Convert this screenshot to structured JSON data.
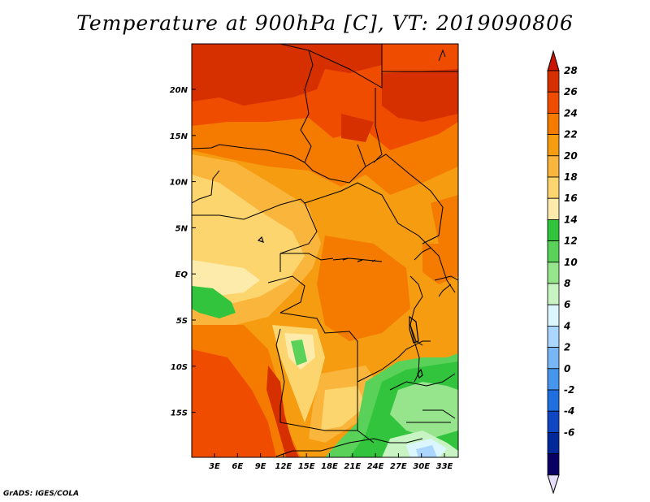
{
  "title": "Temperature at 900hPa [C], VT: 2019090806",
  "credit": "GrADS: IGES/COLA",
  "lat_labels": [
    "20N",
    "15N",
    "10N",
    "5N",
    "EQ",
    "5S",
    "10S",
    "15S"
  ],
  "lon_labels": [
    "3E",
    "6E",
    "9E",
    "12E",
    "15E",
    "18E",
    "21E",
    "24E",
    "27E",
    "30E",
    "33E"
  ],
  "colorbar": {
    "labels": [
      "28",
      "26",
      "24",
      "22",
      "20",
      "18",
      "16",
      "14",
      "12",
      "10",
      "8",
      "6",
      "4",
      "2",
      "0",
      "-2",
      "-4",
      "-6"
    ],
    "colors": [
      "#d73000",
      "#f04c00",
      "#f57a00",
      "#f69c10",
      "#fab53c",
      "#fdd56e",
      "#fcebaa",
      "#32c43c",
      "#5ad25a",
      "#96e58c",
      "#c8f4c3",
      "#dcf6ff",
      "#aad6ff",
      "#78b6f6",
      "#4696ee",
      "#1f6fe0",
      "#0f46c4",
      "#00289a",
      "#0a0064"
    ],
    "top_arrow_color": "#c81400",
    "bottom_arrow_color": "#e6ddfa"
  }
}
